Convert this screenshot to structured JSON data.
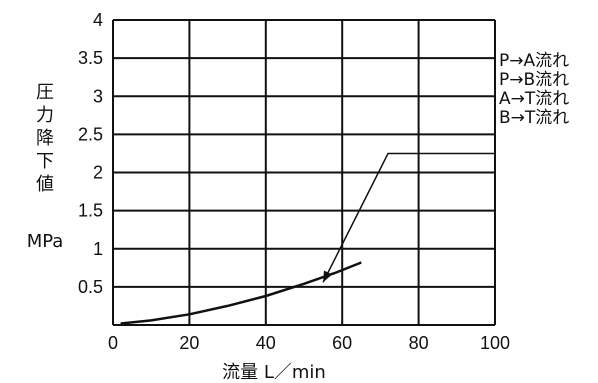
{
  "chart_data": {
    "type": "line",
    "xlabel": "流量 L／min",
    "ylabel_chars": [
      "圧",
      "力",
      "降",
      "下",
      "値"
    ],
    "ylabel_unit": "MPa",
    "xlim": [
      0,
      100
    ],
    "ylim": [
      0,
      4
    ],
    "x_ticks": [
      "0",
      "20",
      "40",
      "60",
      "80",
      "100"
    ],
    "y_ticks": [
      "0.5",
      "1",
      "1.5",
      "2",
      "2.5",
      "3",
      "3.5",
      "4"
    ],
    "grid": true,
    "legend": [
      "P→A流れ",
      "P→B流れ",
      "A→T流れ",
      "B→T流れ"
    ],
    "series": [
      {
        "x": [
          2,
          10,
          20,
          30,
          40,
          50,
          58,
          65
        ],
        "y": [
          0.02,
          0.06,
          0.14,
          0.25,
          0.38,
          0.54,
          0.68,
          0.82
        ]
      }
    ],
    "annotation": {
      "label": "legend leader line",
      "from_x": 100,
      "from_y": 2.25,
      "mid_x": 72,
      "mid_y": 2.25,
      "to_x": 55,
      "to_y": 0.56
    },
    "colors": {
      "ink": "#111111",
      "background": "#ffffff"
    }
  }
}
